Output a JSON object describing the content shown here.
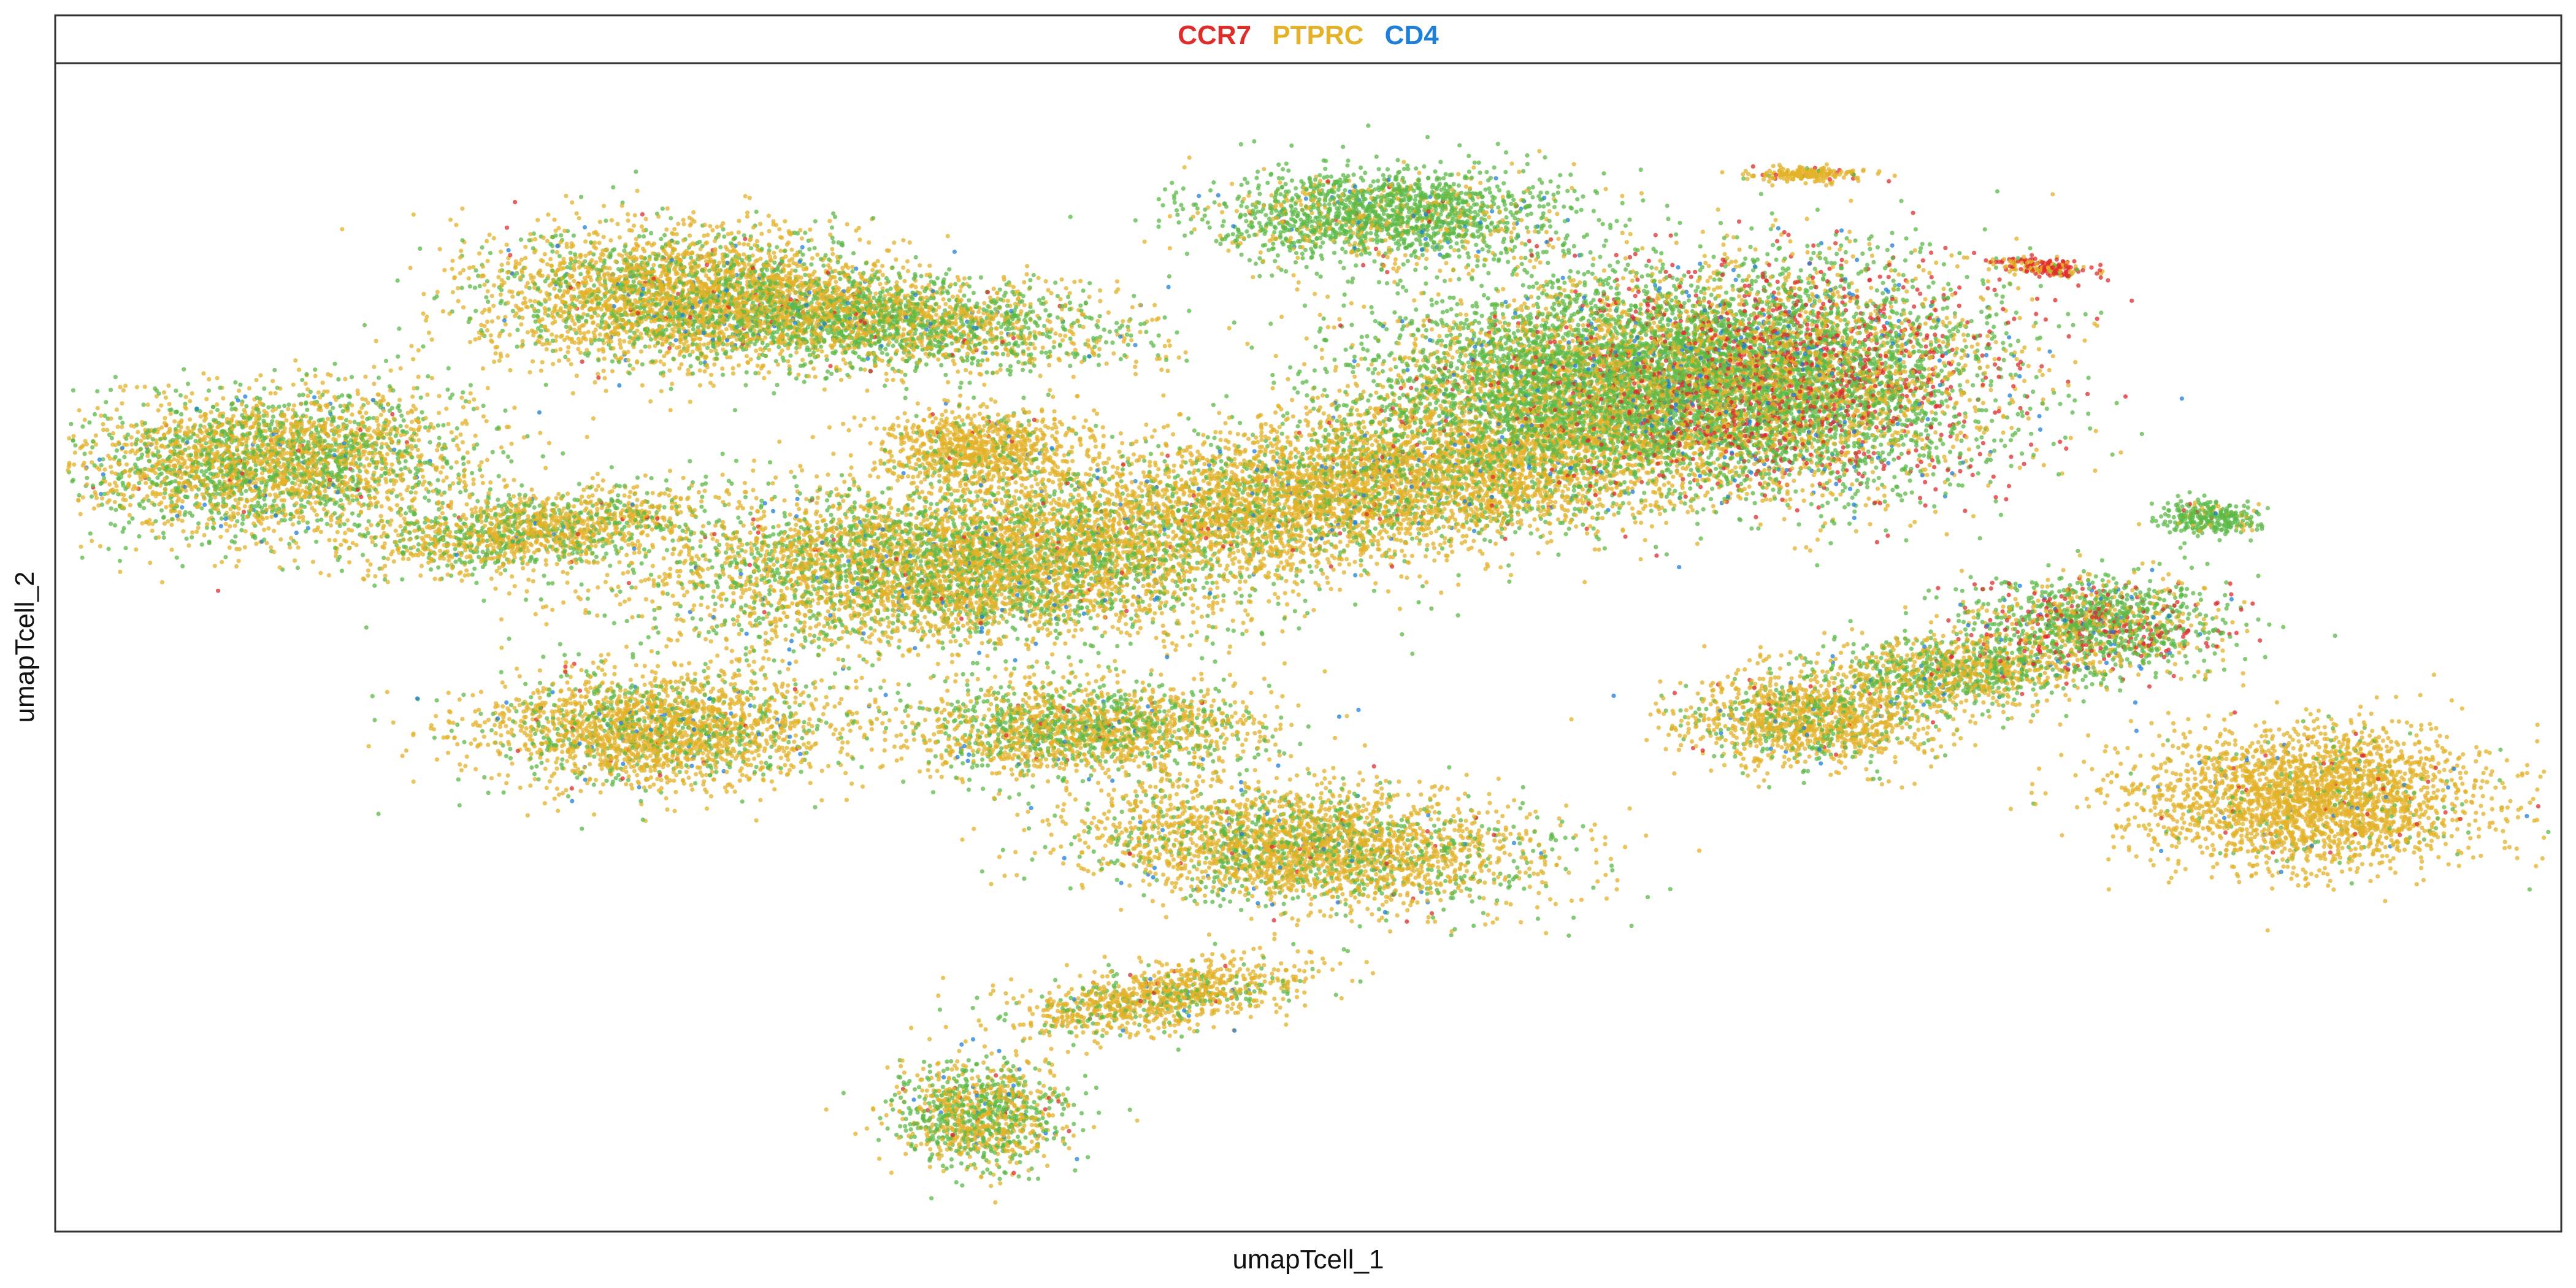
{
  "chart_data": {
    "type": "scatter",
    "xlabel": "umapTcell_1",
    "ylabel": "umapTcell_2",
    "grid": false,
    "legend_placement": "top-center",
    "axis_ticks": false,
    "xlim": [
      0,
      100
    ],
    "ylim": [
      0,
      100
    ],
    "series": [
      {
        "name": "CCR7",
        "color": "#e02b2b"
      },
      {
        "name": "PTPRC",
        "color": "#e3b228"
      },
      {
        "name": "CD4",
        "color": "#1e7fd8"
      }
    ],
    "cluster_dominant_color": "#5cb947",
    "clusters": [
      {
        "cx": 8.5,
        "cy": 66,
        "rx": 8,
        "ry": 6,
        "rot": 12,
        "ptprc": 0.55,
        "green": 0.4,
        "ccr7": 0.01,
        "cd4": 0.02
      },
      {
        "cx": 19,
        "cy": 60,
        "rx": 7,
        "ry": 3,
        "rot": 15,
        "ptprc": 0.6,
        "green": 0.35,
        "ccr7": 0.01,
        "cd4": 0.02
      },
      {
        "cx": 25,
        "cy": 80,
        "rx": 8,
        "ry": 6,
        "rot": -5,
        "ptprc": 0.7,
        "green": 0.27,
        "ccr7": 0.01,
        "cd4": 0.02
      },
      {
        "cx": 33,
        "cy": 78,
        "rx": 9,
        "ry": 4,
        "rot": -8,
        "ptprc": 0.45,
        "green": 0.5,
        "ccr7": 0.01,
        "cd4": 0.02
      },
      {
        "cx": 37,
        "cy": 67,
        "rx": 4,
        "ry": 3.5,
        "rot": 0,
        "ptprc": 0.9,
        "green": 0.08,
        "ccr7": 0.01,
        "cd4": 0.01
      },
      {
        "cx": 36,
        "cy": 57,
        "rx": 12,
        "ry": 7,
        "rot": 5,
        "ptprc": 0.6,
        "green": 0.37,
        "ccr7": 0.01,
        "cd4": 0.02
      },
      {
        "cx": 24,
        "cy": 43,
        "rx": 7,
        "ry": 5,
        "rot": 0,
        "ptprc": 0.75,
        "green": 0.22,
        "ccr7": 0.01,
        "cd4": 0.02
      },
      {
        "cx": 41,
        "cy": 43,
        "rx": 7,
        "ry": 4,
        "rot": 0,
        "ptprc": 0.6,
        "green": 0.37,
        "ccr7": 0.01,
        "cd4": 0.02
      },
      {
        "cx": 53,
        "cy": 64,
        "rx": 16,
        "ry": 6,
        "rot": 18,
        "ptprc": 0.75,
        "green": 0.22,
        "ccr7": 0.01,
        "cd4": 0.02
      },
      {
        "cx": 53,
        "cy": 87,
        "rx": 7,
        "ry": 4,
        "rot": 0,
        "ptprc": 0.2,
        "green": 0.77,
        "ccr7": 0.01,
        "cd4": 0.02
      },
      {
        "cx": 61,
        "cy": 73,
        "rx": 9,
        "ry": 8,
        "rot": 0,
        "ptprc": 0.35,
        "green": 0.6,
        "ccr7": 0.03,
        "cd4": 0.02
      },
      {
        "cx": 69,
        "cy": 73,
        "rx": 9,
        "ry": 10,
        "rot": 0,
        "ptprc": 0.3,
        "green": 0.48,
        "ccr7": 0.18,
        "cd4": 0.04
      },
      {
        "cx": 50,
        "cy": 33,
        "rx": 9,
        "ry": 5,
        "rot": -10,
        "ptprc": 0.7,
        "green": 0.27,
        "ccr7": 0.01,
        "cd4": 0.02
      },
      {
        "cx": 44,
        "cy": 20,
        "rx": 6,
        "ry": 2.5,
        "rot": 20,
        "ptprc": 0.8,
        "green": 0.17,
        "ccr7": 0.01,
        "cd4": 0.02
      },
      {
        "cx": 37,
        "cy": 10,
        "rx": 3.5,
        "ry": 4.5,
        "rot": 0,
        "ptprc": 0.5,
        "green": 0.46,
        "ccr7": 0.02,
        "cd4": 0.02
      },
      {
        "cx": 70,
        "cy": 44,
        "rx": 5,
        "ry": 4,
        "rot": 0,
        "ptprc": 0.75,
        "green": 0.22,
        "ccr7": 0.01,
        "cd4": 0.02
      },
      {
        "cx": 76,
        "cy": 48,
        "rx": 5,
        "ry": 3,
        "rot": 0,
        "ptprc": 0.55,
        "green": 0.42,
        "ccr7": 0.01,
        "cd4": 0.02
      },
      {
        "cx": 81.5,
        "cy": 52,
        "rx": 5,
        "ry": 4,
        "rot": 0,
        "ptprc": 0.25,
        "green": 0.55,
        "ccr7": 0.16,
        "cd4": 0.04
      },
      {
        "cx": 86,
        "cy": 61,
        "rx": 2,
        "ry": 1.5,
        "rot": 0,
        "ptprc": 0.15,
        "green": 0.83,
        "ccr7": 0.01,
        "cd4": 0.01
      },
      {
        "cx": 90,
        "cy": 37,
        "rx": 7,
        "ry": 6,
        "rot": 0,
        "ptprc": 0.92,
        "green": 0.06,
        "ccr7": 0.01,
        "cd4": 0.01
      },
      {
        "cx": 70,
        "cy": 90.5,
        "rx": 2,
        "ry": 0.6,
        "rot": 0,
        "ptprc": 0.9,
        "green": 0.05,
        "ccr7": 0.05,
        "cd4": 0.0
      },
      {
        "cx": 79.5,
        "cy": 82.5,
        "rx": 2,
        "ry": 0.7,
        "rot": -15,
        "ptprc": 0.4,
        "green": 0.05,
        "ccr7": 0.55,
        "cd4": 0.0
      }
    ]
  },
  "strip": {
    "labels": [
      {
        "text": "CCR7",
        "color": "#e02b2b"
      },
      {
        "text": "PTPRC",
        "color": "#e3b228"
      },
      {
        "text": "CD4",
        "color": "#1e7fd8"
      }
    ]
  }
}
